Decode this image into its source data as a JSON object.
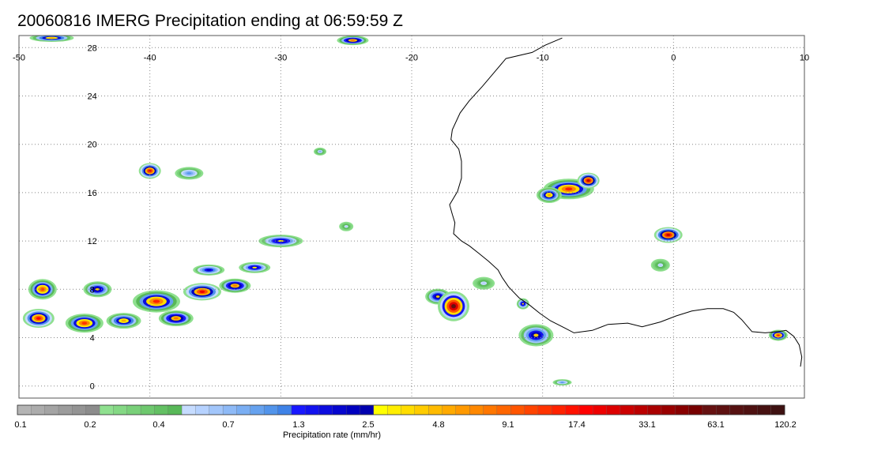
{
  "title": "20060816 IMERG Precipitation ending at 06:59:59 Z",
  "map": {
    "lon_range": [
      -50,
      10
    ],
    "lat_range": [
      -1,
      29
    ],
    "lon_ticks": [
      -50,
      -40,
      -30,
      -20,
      -10,
      0,
      10
    ],
    "lon_labels": [
      "-50",
      "-40",
      "-30",
      "-20",
      "-10",
      "0",
      "10"
    ],
    "lat_ticks": [
      0,
      4,
      8,
      12,
      16,
      20,
      24,
      28
    ],
    "lat_labels": [
      "0",
      "4",
      "8",
      "12",
      "16",
      "20",
      "24",
      "28"
    ],
    "grid": true,
    "grid_style": "dotted",
    "coastline_color": "#000000"
  },
  "colorbar": {
    "label": "Precipitation rate (mm/hr)",
    "tick_labels": [
      "0.1",
      "0.2",
      "0.4",
      "0.7",
      "1.3",
      "2.5",
      "4.8",
      "9.1",
      "17.4",
      "33.1",
      "63.1",
      "120.2"
    ],
    "colors": [
      "#b4b4b4",
      "#acacac",
      "#a4a4a4",
      "#9c9c9c",
      "#949494",
      "#8c8c8c",
      "#8fe08f",
      "#84d884",
      "#79d079",
      "#6ec86e",
      "#63c063",
      "#58b858",
      "#c6dcff",
      "#b6d2ff",
      "#a2c6fb",
      "#8ebaf7",
      "#7aaef3",
      "#66a2ef",
      "#5294eb",
      "#3e82e7",
      "#1818ff",
      "#1212ef",
      "#0c0cdf",
      "#0606cf",
      "#0000bf",
      "#0000af",
      "#ffff00",
      "#ffee00",
      "#ffdd00",
      "#ffcc00",
      "#ffbb00",
      "#ffaa00",
      "#ff9900",
      "#ff8800",
      "#ff7700",
      "#ff6600",
      "#ff5500",
      "#ff4400",
      "#ff3300",
      "#ff2200",
      "#ff1100",
      "#ff0000",
      "#ee0000",
      "#dd0000",
      "#cc0000",
      "#bb0000",
      "#aa0000",
      "#990000",
      "#880000",
      "#770000",
      "#661111",
      "#5e1111",
      "#561111",
      "#4e1111",
      "#461111",
      "#3e1111"
    ]
  },
  "precipitation_cells": [
    {
      "lon": -47.5,
      "lat": 28.8,
      "rx": 28,
      "ry": 5,
      "peak": 0.6
    },
    {
      "lon": -24.5,
      "lat": 28.6,
      "rx": 20,
      "ry": 6,
      "peak": 0.65
    },
    {
      "lon": -40.0,
      "lat": 17.8,
      "rx": 14,
      "ry": 10,
      "peak": 0.8
    },
    {
      "lon": -37.0,
      "lat": 17.6,
      "rx": 18,
      "ry": 8,
      "peak": 0.35
    },
    {
      "lon": -27.0,
      "lat": 19.4,
      "rx": 8,
      "ry": 5,
      "peak": 0.3
    },
    {
      "lon": -25.0,
      "lat": 13.2,
      "rx": 9,
      "ry": 6,
      "peak": 0.25
    },
    {
      "lon": -30.0,
      "lat": 12.0,
      "rx": 28,
      "ry": 8,
      "peak": 0.5
    },
    {
      "lon": -35.5,
      "lat": 9.6,
      "rx": 20,
      "ry": 7,
      "peak": 0.45
    },
    {
      "lon": -32.0,
      "lat": 9.8,
      "rx": 20,
      "ry": 7,
      "peak": 0.5
    },
    {
      "lon": -48.2,
      "lat": 8.0,
      "rx": 18,
      "ry": 13,
      "peak": 0.7
    },
    {
      "lon": -44.0,
      "lat": 8.0,
      "rx": 18,
      "ry": 10,
      "peak": 0.55
    },
    {
      "lon": -39.5,
      "lat": 7.0,
      "rx": 30,
      "ry": 14,
      "peak": 0.75
    },
    {
      "lon": -36.0,
      "lat": 7.8,
      "rx": 24,
      "ry": 11,
      "peak": 0.8
    },
    {
      "lon": -33.5,
      "lat": 8.3,
      "rx": 20,
      "ry": 9,
      "peak": 0.65
    },
    {
      "lon": -48.5,
      "lat": 5.6,
      "rx": 20,
      "ry": 12,
      "peak": 0.78
    },
    {
      "lon": -45.0,
      "lat": 5.2,
      "rx": 24,
      "ry": 12,
      "peak": 0.72
    },
    {
      "lon": -42.0,
      "lat": 5.4,
      "rx": 22,
      "ry": 10,
      "peak": 0.6
    },
    {
      "lon": -38.0,
      "lat": 5.6,
      "rx": 22,
      "ry": 10,
      "peak": 0.65
    },
    {
      "lon": -18.0,
      "lat": 7.4,
      "rx": 16,
      "ry": 10,
      "peak": 0.55
    },
    {
      "lon": -16.8,
      "lat": 6.6,
      "rx": 20,
      "ry": 19,
      "peak": 0.97
    },
    {
      "lon": -10.5,
      "lat": 4.2,
      "rx": 22,
      "ry": 14,
      "peak": 0.55
    },
    {
      "lon": -11.5,
      "lat": 6.8,
      "rx": 8,
      "ry": 7,
      "peak": 0.5
    },
    {
      "lon": -8.0,
      "lat": 16.3,
      "rx": 32,
      "ry": 13,
      "peak": 0.75
    },
    {
      "lon": -6.5,
      "lat": 17.0,
      "rx": 14,
      "ry": 10,
      "peak": 0.85
    },
    {
      "lon": -9.5,
      "lat": 15.8,
      "rx": 16,
      "ry": 10,
      "peak": 0.6
    },
    {
      "lon": -0.4,
      "lat": 12.5,
      "rx": 18,
      "ry": 10,
      "peak": 0.85
    },
    {
      "lon": 8.0,
      "lat": 4.2,
      "rx": 12,
      "ry": 7,
      "peak": 0.75
    },
    {
      "lon": -8.5,
      "lat": 0.3,
      "rx": 12,
      "ry": 4,
      "peak": 0.35
    },
    {
      "lon": -1.0,
      "lat": 10.0,
      "rx": 12,
      "ry": 8,
      "peak": 0.25
    },
    {
      "lon": -14.5,
      "lat": 8.5,
      "rx": 14,
      "ry": 8,
      "peak": 0.25
    }
  ]
}
